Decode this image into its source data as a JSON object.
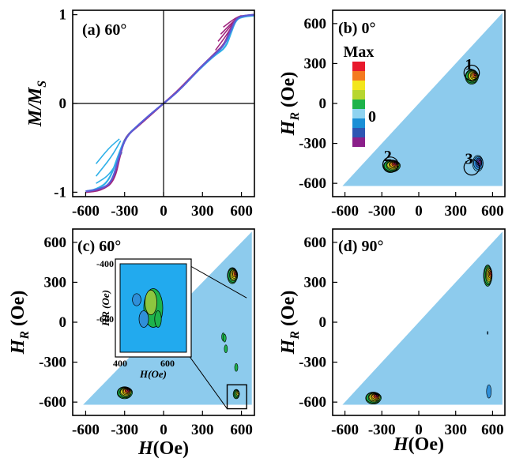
{
  "colors": {
    "region": "#8dcbed",
    "inset_bg": "#22aaee",
    "contour_line": "#000000",
    "magenta": "#a0267f",
    "cyan": "#2fb0e8",
    "blue": "#5b5bd6"
  },
  "chart_data": [
    {
      "type": "line",
      "panel_label": "(a) 60°",
      "ylabel": "M/M",
      "ylabel_sub": "S",
      "xlim": [
        -700,
        700
      ],
      "ylim": [
        -1.05,
        1.05
      ],
      "xticks": [
        "-600",
        "-300",
        "0",
        "300",
        "600"
      ],
      "xtick_values": [
        -600,
        -300,
        0,
        300,
        600
      ],
      "yticks": [
        "1",
        "0",
        "-1"
      ],
      "ytick_values": [
        1,
        0,
        -1
      ],
      "series": [
        {
          "color": "#2fb0e8",
          "x": [
            -600,
            -520,
            -420,
            -340,
            -290,
            -200,
            -100,
            0,
            100,
            200,
            300,
            400,
            480,
            520,
            560,
            620,
            700
          ],
          "y": [
            -0.99,
            -0.97,
            -0.88,
            -0.55,
            -0.37,
            -0.25,
            -0.12,
            0.0,
            0.12,
            0.27,
            0.42,
            0.55,
            0.63,
            0.8,
            0.95,
            0.98,
            0.99
          ]
        },
        {
          "color": "#a0267f",
          "x": [
            -600,
            -480,
            -380,
            -330,
            -290,
            -200,
            -100,
            0,
            100,
            200,
            300,
            400,
            470,
            520,
            560,
            620,
            700
          ],
          "y": [
            -1.0,
            -0.98,
            -0.88,
            -0.55,
            -0.37,
            -0.26,
            -0.13,
            0.0,
            0.13,
            0.28,
            0.43,
            0.57,
            0.67,
            0.85,
            0.97,
            0.99,
            1.0
          ]
        },
        {
          "color": "#5b5bd6",
          "x": [
            -600,
            -500,
            -400,
            -340,
            -290,
            -200,
            -100,
            0,
            100,
            200,
            300,
            400,
            470,
            520,
            560,
            620,
            700
          ],
          "y": [
            -0.99,
            -0.97,
            -0.9,
            -0.58,
            -0.38,
            -0.25,
            -0.12,
            0.0,
            0.12,
            0.27,
            0.43,
            0.56,
            0.66,
            0.83,
            0.96,
            0.99,
            1.0
          ]
        }
      ],
      "minor_branches": [
        {
          "color": "#2fb0e8",
          "x": [
            -520,
            -420,
            -340
          ],
          "y": [
            -0.68,
            -0.5,
            -0.4
          ]
        },
        {
          "color": "#2fb0e8",
          "x": [
            -520,
            -400,
            -330
          ],
          "y": [
            -0.82,
            -0.6,
            -0.42
          ]
        },
        {
          "color": "#2fb0e8",
          "x": [
            -520,
            -410,
            -320
          ],
          "y": [
            -0.9,
            -0.8,
            -0.55
          ]
        },
        {
          "color": "#a0267f",
          "x": [
            400,
            500,
            560
          ],
          "y": [
            0.6,
            0.8,
            0.96
          ]
        },
        {
          "color": "#a0267f",
          "x": [
            420,
            520,
            575
          ],
          "y": [
            0.7,
            0.88,
            0.97
          ]
        },
        {
          "color": "#a0267f",
          "x": [
            440,
            540,
            590
          ],
          "y": [
            0.78,
            0.93,
            0.98
          ]
        },
        {
          "color": "#a0267f",
          "x": [
            460,
            550,
            600
          ],
          "y": [
            0.86,
            0.96,
            0.99
          ]
        }
      ]
    },
    {
      "type": "heatmap",
      "panel_label": "(b) 0°",
      "xlabel": "",
      "ylabel": "H",
      "ylabel_sub": "R",
      "ylabel_unit": "(Oe)",
      "xlim": [
        -700,
        700
      ],
      "ylim": [
        -700,
        700
      ],
      "xticks": [
        "-600",
        "-300",
        "0",
        "300",
        "600"
      ],
      "xtick_values": [
        -600,
        -300,
        0,
        300,
        600
      ],
      "yticks": [
        "600",
        "300",
        "0",
        "-300",
        "-600"
      ],
      "ytick_values": [
        600,
        300,
        0,
        -300,
        -600
      ],
      "colorbar": {
        "max_label": "Max",
        "zero_label": "0",
        "colors": [
          "#e8192c",
          "#f47a1f",
          "#f3e61b",
          "#b7d630",
          "#1db34b",
          "#8fd3f0",
          "#1a8fd6",
          "#2d56b3",
          "#8b1f8a"
        ]
      },
      "peaks": [
        {
          "x": 430,
          "y": 200,
          "intensity": 0.9,
          "rx": 55,
          "ry": 55
        },
        {
          "x": -220,
          "y": -470,
          "intensity": 1.0,
          "rx": 70,
          "ry": 45
        },
        {
          "x": 480,
          "y": -450,
          "intensity": -0.9,
          "rx": 45,
          "ry": 60
        }
      ],
      "circles": [
        {
          "label": "1",
          "x": 430,
          "y": 230,
          "r": 120
        },
        {
          "label": "2",
          "x": -230,
          "y": -460,
          "r": 120
        },
        {
          "label": "3",
          "x": 430,
          "y": -480,
          "r": 120
        }
      ]
    },
    {
      "type": "heatmap",
      "panel_label": "(c) 60°",
      "xlabel": "H",
      "xlabel_unit": "(Oe)",
      "ylabel": "H",
      "ylabel_sub": "R",
      "ylabel_unit": "(Oe)",
      "xlim": [
        -700,
        700
      ],
      "ylim": [
        -700,
        700
      ],
      "xticks": [
        "-600",
        "-300",
        "0",
        "300",
        "600"
      ],
      "xtick_values": [
        -600,
        -300,
        0,
        300,
        600
      ],
      "yticks": [
        "600",
        "300",
        "0",
        "-300",
        "-600"
      ],
      "ytick_values": [
        600,
        300,
        0,
        -300,
        -600
      ],
      "peaks": [
        {
          "x": -300,
          "y": -530,
          "intensity": 1.0,
          "rx": 60,
          "ry": 45
        },
        {
          "x": 530,
          "y": 350,
          "intensity": 0.9,
          "rx": 40,
          "ry": 60
        },
        {
          "x": 560,
          "y": -540,
          "intensity": 0.5,
          "rx": 25,
          "ry": 35
        }
      ],
      "inset": {
        "xlim": [
          400,
          680
        ],
        "ylim": [
          -720,
          -400
        ],
        "xticks": [
          "400",
          "600"
        ],
        "xtick_values": [
          400,
          600
        ],
        "yticks": [
          "-400",
          "-600"
        ],
        "ytick_values": [
          -400,
          -600
        ],
        "xlabel": "H",
        "xlabel_unit": "(Oe)",
        "ylabel": "H",
        "ylabel_sub": "R",
        "ylabel_unit": "(Oe)",
        "zoom_box": {
          "x": [
            490,
            640
          ],
          "y": [
            -650,
            -470
          ]
        }
      }
    },
    {
      "type": "heatmap",
      "panel_label": "(d) 90°",
      "xlabel": "H",
      "xlabel_unit": "(Oe)",
      "ylabel": "H",
      "ylabel_sub": "R",
      "ylabel_unit": "(Oe)",
      "xlim": [
        -700,
        700
      ],
      "ylim": [
        -700,
        700
      ],
      "xticks": [
        "-600",
        "-300",
        "0",
        "300",
        "600"
      ],
      "xtick_values": [
        -600,
        -300,
        0,
        300,
        600
      ],
      "yticks": [
        "600",
        "300",
        "0",
        "-300",
        "-600"
      ],
      "ytick_values": [
        600,
        300,
        0,
        -300,
        -600
      ],
      "peaks": [
        {
          "x": -370,
          "y": -570,
          "intensity": 1.0,
          "rx": 65,
          "ry": 45
        },
        {
          "x": 560,
          "y": 350,
          "intensity": 0.85,
          "rx": 35,
          "ry": 80
        }
      ]
    }
  ]
}
